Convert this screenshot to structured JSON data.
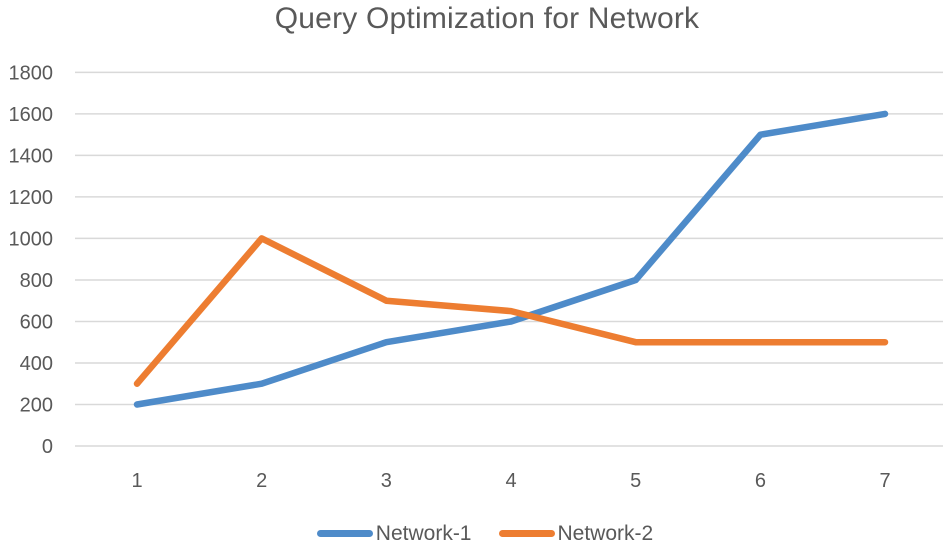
{
  "chart_data": {
    "type": "line",
    "title": "Query Optimization for Network",
    "xlabel": "",
    "ylabel": "",
    "categories": [
      "1",
      "2",
      "3",
      "4",
      "5",
      "6",
      "7"
    ],
    "series": [
      {
        "name": "Network-1",
        "color": "#4e8bc9",
        "values": [
          200,
          300,
          500,
          600,
          800,
          1500,
          1600
        ]
      },
      {
        "name": "Network-2",
        "color": "#ed7d31",
        "values": [
          300,
          1000,
          700,
          650,
          500,
          500,
          500
        ]
      }
    ],
    "ylim": [
      0,
      1800
    ],
    "yticks": [
      0,
      200,
      400,
      600,
      800,
      1000,
      1200,
      1400,
      1600,
      1800
    ],
    "grid": true,
    "legend_position": "bottom",
    "colors": {
      "title": "#595959",
      "axis_labels": "#595959",
      "gridlines": "#d9d9d9",
      "background": "#ffffff"
    }
  }
}
